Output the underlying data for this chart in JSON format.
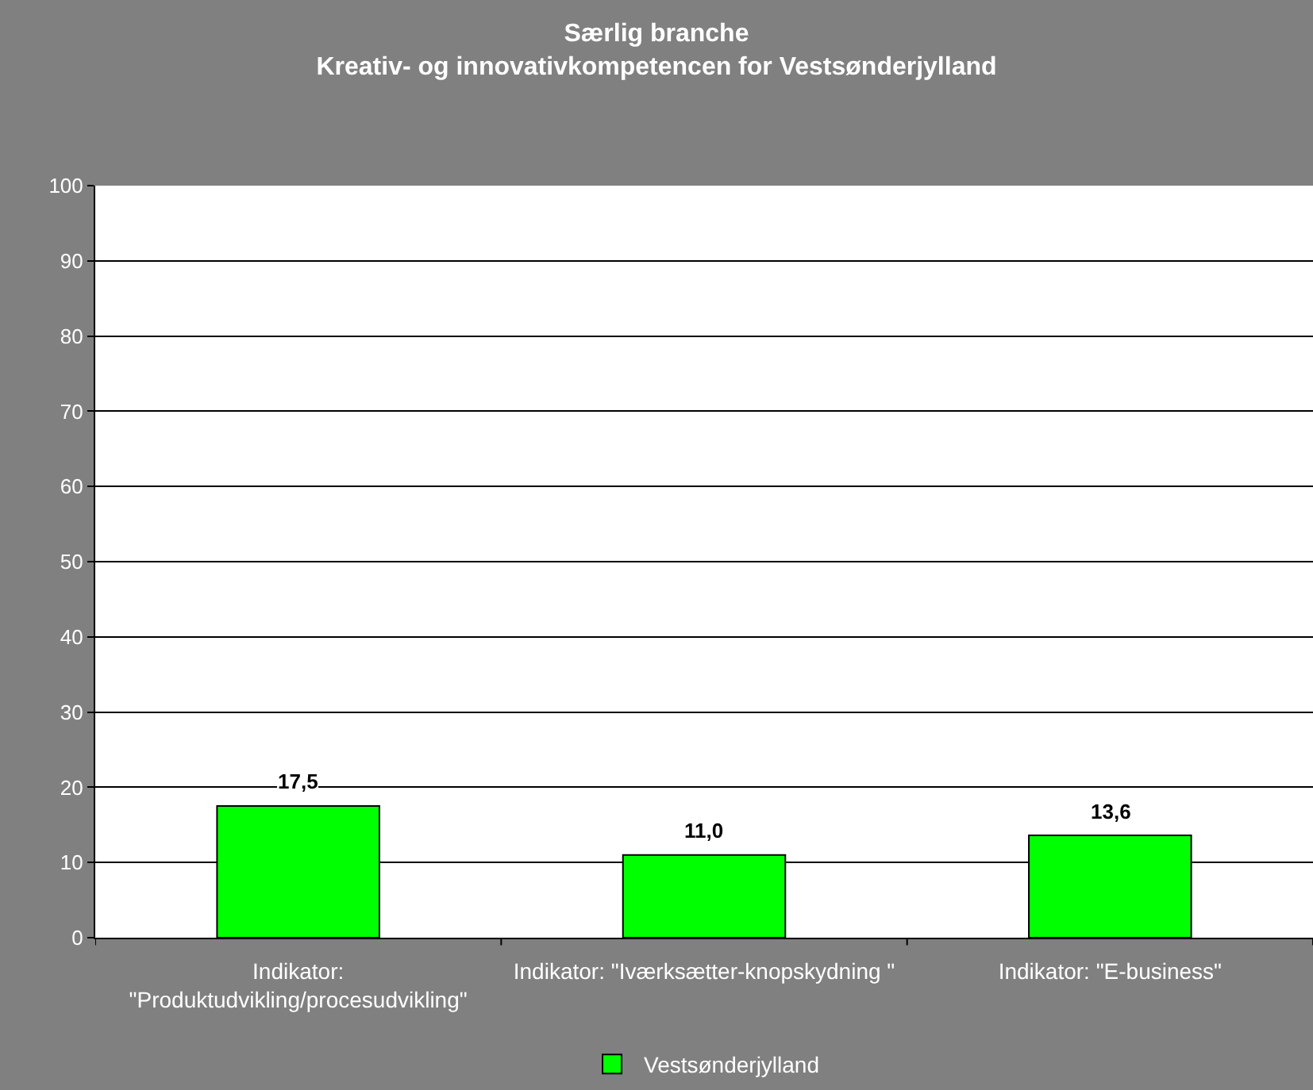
{
  "chart_data": {
    "type": "bar",
    "title": "Særlig branche\nKreativ- og innovativkompetencen for Vestsønderjylland",
    "categories": [
      "Indikator: \"Produktudvikling/procesudvikling\"",
      "Indikator: \"Iværksætter-knopskydning \"",
      "Indikator: \"E-business\""
    ],
    "series": [
      {
        "name": "Vestsønderjylland",
        "color": "#00ff00",
        "values": [
          17.5,
          11.0,
          13.6
        ],
        "value_labels": [
          "17,5",
          "11,0",
          "13,6"
        ]
      }
    ],
    "ylim": [
      0,
      100
    ],
    "yticks": [
      0,
      10,
      20,
      30,
      40,
      50,
      60,
      70,
      80,
      90,
      100
    ],
    "grid": "y",
    "legend": "bottom"
  }
}
